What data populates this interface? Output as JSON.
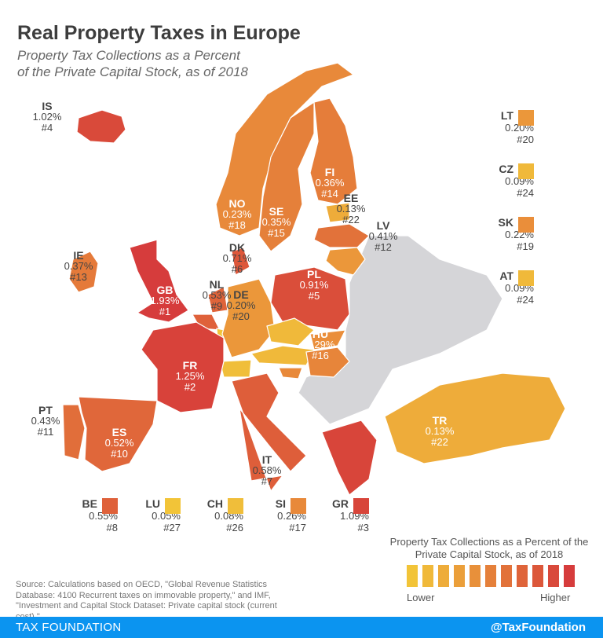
{
  "title": "Real Property Taxes in Europe",
  "subtitle": "Property Tax Collections as a Percent of the Private Capital Stock, as of 2018",
  "colors": {
    "no_data": "#d5d5d8",
    "footer": "#0b94f0"
  },
  "countries": [
    {
      "code": "IS",
      "value": "1.02%",
      "rank": "#4",
      "color": "#d94a3a"
    },
    {
      "code": "IE",
      "value": "0.37%",
      "rank": "#13",
      "color": "#e57a3a"
    },
    {
      "code": "GB",
      "value": "1.93%",
      "rank": "#1",
      "color": "#d63c3c"
    },
    {
      "code": "NO",
      "value": "0.23%",
      "rank": "#18",
      "color": "#e8893a"
    },
    {
      "code": "SE",
      "value": "0.35%",
      "rank": "#15",
      "color": "#e5803a"
    },
    {
      "code": "FI",
      "value": "0.36%",
      "rank": "#14",
      "color": "#e57d3a"
    },
    {
      "code": "EE",
      "value": "0.13%",
      "rank": "#22",
      "color": "#eeac3a"
    },
    {
      "code": "LV",
      "value": "0.41%",
      "rank": "#12",
      "color": "#e2723a"
    },
    {
      "code": "DK",
      "value": "0.71%",
      "rank": "#6",
      "color": "#dd573a"
    },
    {
      "code": "NL",
      "value": "0.53%",
      "rank": "#9",
      "color": "#df643a"
    },
    {
      "code": "DE",
      "value": "0.20%",
      "rank": "#20",
      "color": "#eb973a"
    },
    {
      "code": "PL",
      "value": "0.91%",
      "rank": "#5",
      "color": "#da4e3a"
    },
    {
      "code": "FR",
      "value": "1.25%",
      "rank": "#2",
      "color": "#d8423a"
    },
    {
      "code": "HU",
      "value": "0.29%",
      "rank": "#16",
      "color": "#e7853a"
    },
    {
      "code": "PT",
      "value": "0.43%",
      "rank": "#11",
      "color": "#e16e3a"
    },
    {
      "code": "ES",
      "value": "0.52%",
      "rank": "#10",
      "color": "#e0673a"
    },
    {
      "code": "IT",
      "value": "0.58%",
      "rank": "#7",
      "color": "#de5e3a"
    },
    {
      "code": "TR",
      "value": "0.13%",
      "rank": "#22",
      "color": "#eeac3a"
    }
  ],
  "side_list": [
    {
      "code": "LT",
      "value": "0.20%",
      "rank": "#20",
      "color": "#eb973a"
    },
    {
      "code": "CZ",
      "value": "0.09%",
      "rank": "#24",
      "color": "#f0b93a"
    },
    {
      "code": "SK",
      "value": "0.22%",
      "rank": "#19",
      "color": "#ea8e3a"
    },
    {
      "code": "AT",
      "value": "0.09%",
      "rank": "#24",
      "color": "#f0b93a"
    }
  ],
  "bottom_list": [
    {
      "code": "BE",
      "value": "0.55%",
      "rank": "#8",
      "color": "#df613a"
    },
    {
      "code": "LU",
      "value": "0.05%",
      "rank": "#27",
      "color": "#f2c438"
    },
    {
      "code": "CH",
      "value": "0.08%",
      "rank": "#26",
      "color": "#f0be3a"
    },
    {
      "code": "SI",
      "value": "0.26%",
      "rank": "#17",
      "color": "#e8893a"
    },
    {
      "code": "GR",
      "value": "1.09%",
      "rank": "#3",
      "color": "#d8453a"
    }
  ],
  "legend": {
    "title": "Property Tax Collections as a Percent of the Private Capital Stock, as of 2018",
    "low": "Lower",
    "high": "Higher",
    "scale": [
      "#f2c438",
      "#f0b93a",
      "#eeac3a",
      "#eb9f3a",
      "#e8903a",
      "#e5803a",
      "#e2723a",
      "#df643a",
      "#dc573a",
      "#d9493b",
      "#d63c3c"
    ]
  },
  "source": "Source: Calculations based on OECD, \"Global Revenue Statistics Database: 4100 Recurrent taxes on immovable property,\" and IMF, \"Investment and Capital Stock Dataset: Private capital stock (current cost).\"",
  "footer": {
    "left": "TAX FOUNDATION",
    "right": "@TaxFoundation"
  }
}
